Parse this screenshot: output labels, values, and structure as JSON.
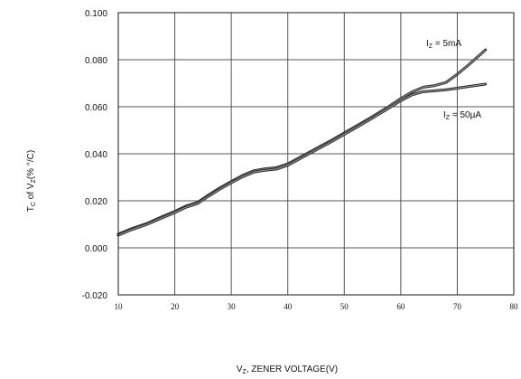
{
  "chart_data": {
    "type": "line",
    "title": "",
    "xlabel": {
      "main": "V",
      "sub": "Z",
      "rest": ", ZENER  VOLTAGE(V)"
    },
    "ylabel": {
      "p1": "T",
      "s1": "C",
      "p2": " of V",
      "s2": "Z",
      "p3": "(% °/C)"
    },
    "xlim": [
      10,
      80
    ],
    "ylim": [
      -0.02,
      0.1
    ],
    "grid": true,
    "xticks": [
      10,
      20,
      30,
      40,
      50,
      60,
      70,
      80
    ],
    "xtick_labels": [
      "10",
      "20",
      "30",
      "40",
      "50",
      "60",
      "70",
      "80"
    ],
    "yticks": [
      -0.02,
      0,
      0.02,
      0.04,
      0.06,
      0.08,
      0.1
    ],
    "ytick_labels": [
      "-0.020",
      "0.000",
      "0.020",
      "0.040",
      "0.060",
      "0.080",
      "0.100"
    ],
    "series": [
      {
        "name": "IZ = 5mA",
        "label": {
          "p1": "I",
          "s1": "Z",
          "p2": " = 5mA"
        },
        "x": [
          10,
          12,
          15,
          18,
          20,
          22,
          24,
          26,
          28,
          30,
          32,
          34,
          36,
          38,
          40,
          42,
          45,
          48,
          50,
          52,
          55,
          58,
          60,
          62,
          64,
          66,
          68,
          70,
          72,
          75
        ],
        "y": [
          0.0058,
          0.0078,
          0.0103,
          0.0135,
          0.0155,
          0.0178,
          0.0193,
          0.0225,
          0.0255,
          0.0282,
          0.0308,
          0.0328,
          0.0336,
          0.0341,
          0.0357,
          0.0383,
          0.0422,
          0.0461,
          0.0489,
          0.0516,
          0.0558,
          0.0603,
          0.0635,
          0.0663,
          0.0683,
          0.069,
          0.0703,
          0.0738,
          0.0778,
          0.0842
        ]
      },
      {
        "name": "IZ = 50µA",
        "label": {
          "p1": "I",
          "s1": "Z",
          "p2": " = 50µA"
        },
        "x": [
          10,
          12,
          15,
          18,
          20,
          22,
          24,
          26,
          28,
          30,
          32,
          34,
          36,
          38,
          40,
          42,
          45,
          48,
          50,
          52,
          55,
          58,
          60,
          62,
          64,
          66,
          68,
          70,
          72,
          75
        ],
        "y": [
          0.0054,
          0.0074,
          0.0099,
          0.013,
          0.015,
          0.0173,
          0.0188,
          0.022,
          0.025,
          0.0277,
          0.0302,
          0.0322,
          0.033,
          0.0335,
          0.0351,
          0.0377,
          0.0416,
          0.0455,
          0.0483,
          0.051,
          0.0552,
          0.0596,
          0.0626,
          0.0651,
          0.0664,
          0.0668,
          0.0672,
          0.0679,
          0.0686,
          0.0696
        ]
      }
    ]
  }
}
